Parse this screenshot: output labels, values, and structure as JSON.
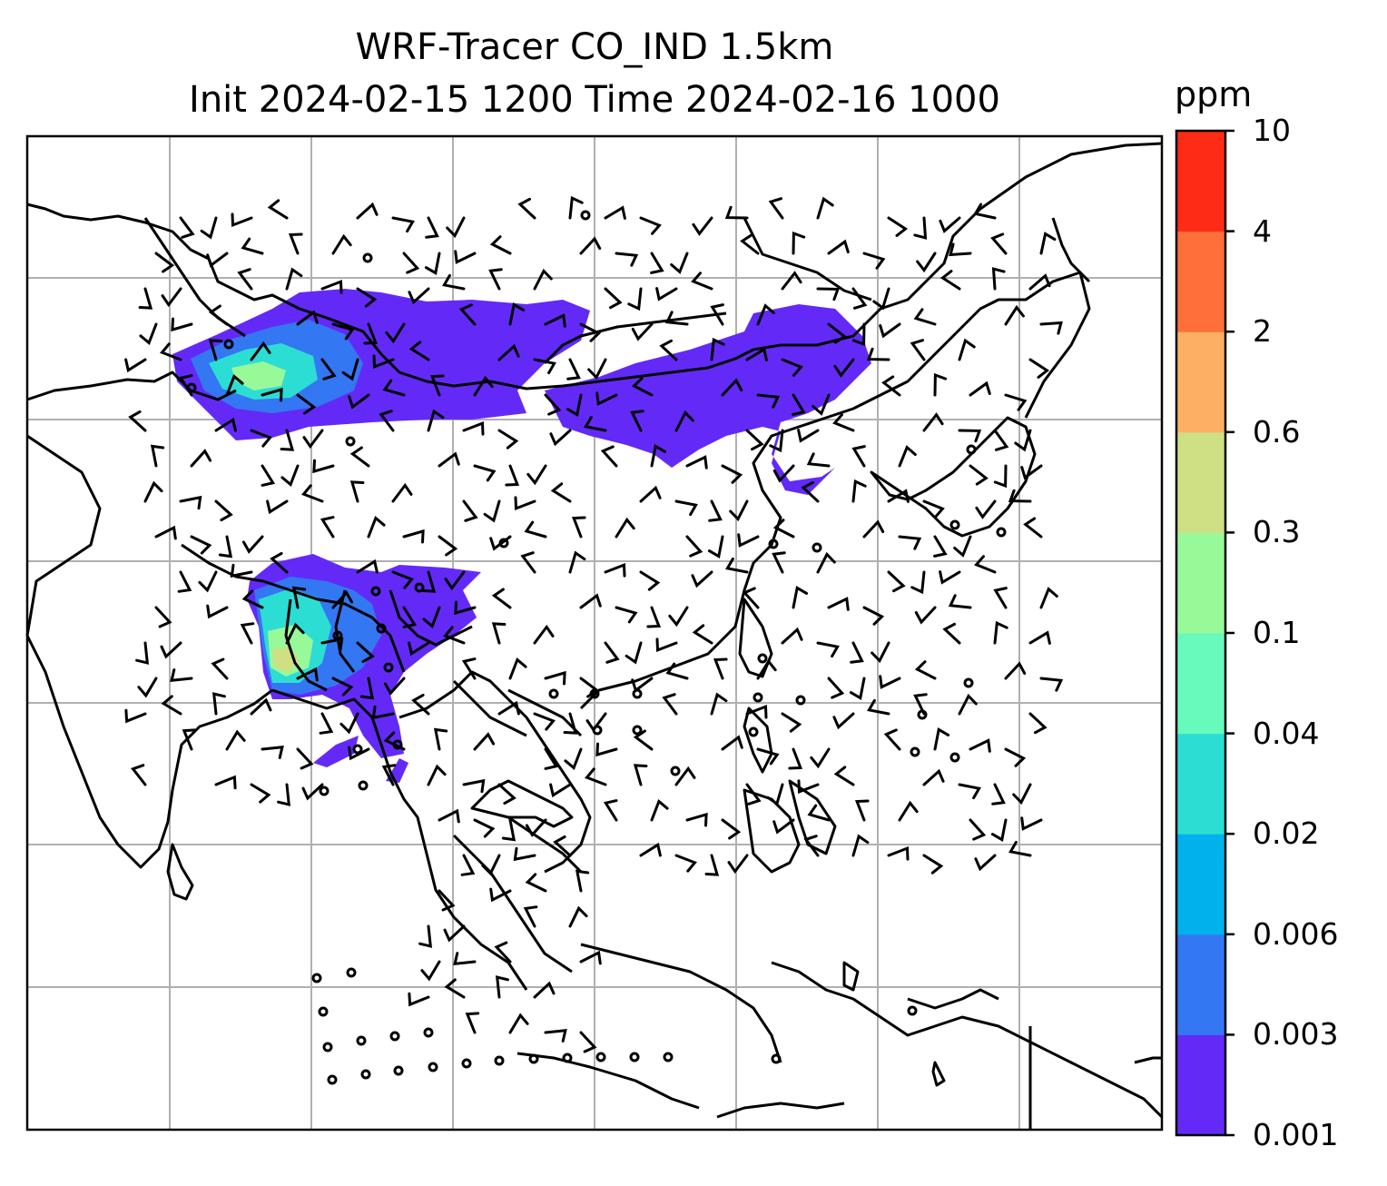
{
  "title_line1": "WRF-Tracer CO_IND 1.5km",
  "title_line2": "Init 2024-02-15 1200 Time 2024-02-16 1000",
  "chart_data": {
    "type": "heatmap",
    "title": "WRF-Tracer CO_IND 1.5km",
    "subtitle": "Init 2024-02-15 1200 Time 2024-02-16 1000",
    "colorbar": {
      "unit": "ppm",
      "levels": [
        "0.001",
        "0.003",
        "0.006",
        "0.02",
        "0.04",
        "0.1",
        "0.3",
        "0.6",
        "2",
        "4",
        "10"
      ],
      "colors": [
        "#632af7",
        "#3377f2",
        "#01b1ec",
        "#2cddd4",
        "#68f9bd",
        "#98f999",
        "#cee083",
        "#fdb063",
        "#fe6f3a",
        "#fe2b16"
      ]
    },
    "grid": true,
    "overlays": [
      "coastlines",
      "country borders",
      "wind barbs"
    ]
  }
}
